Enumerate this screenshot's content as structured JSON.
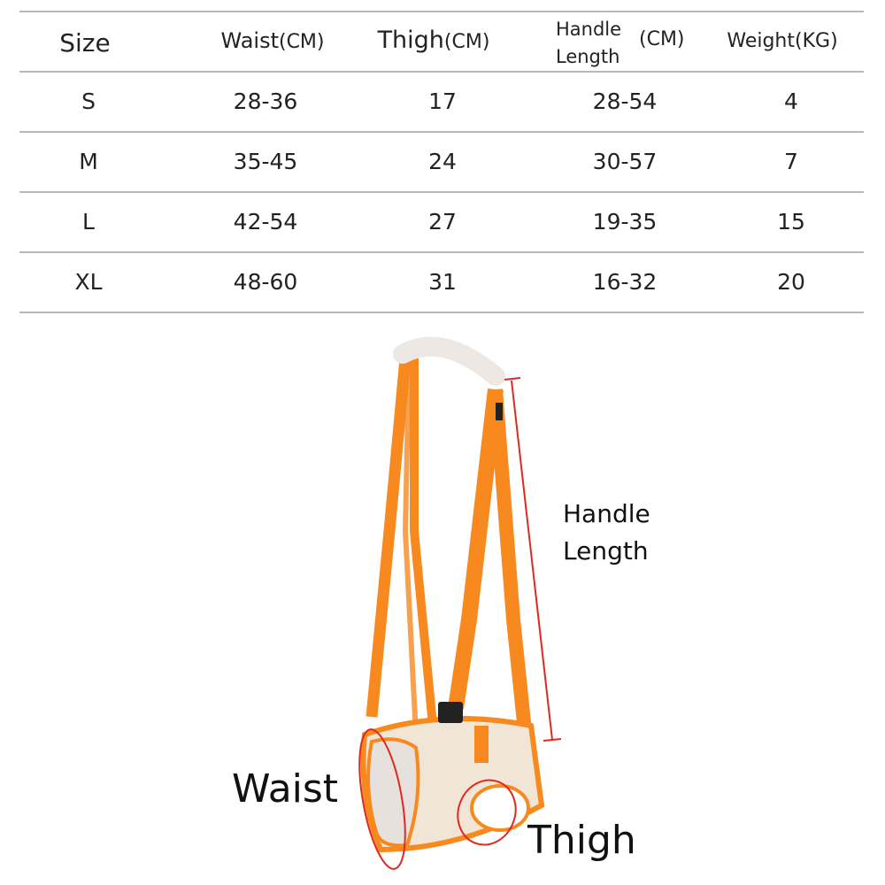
{
  "table": {
    "headers": {
      "size": "Size",
      "waist": "Waist",
      "waist_unit": "(CM)",
      "thigh": "Thigh",
      "thigh_unit": "(CM)",
      "handle_line1": "Handle",
      "handle_line2": "Length",
      "handle_unit": "(CM)",
      "weight": "Weight",
      "weight_unit": "(KG)"
    },
    "rows": [
      {
        "size": "S",
        "waist": "28-36",
        "thigh": "17",
        "handle": "28-54",
        "weight": "4"
      },
      {
        "size": "M",
        "waist": "35-45",
        "thigh": "24",
        "handle": "30-57",
        "weight": "7"
      },
      {
        "size": "L",
        "waist": "42-54",
        "thigh": "27",
        "handle": "19-35",
        "weight": "15"
      },
      {
        "size": "XL",
        "waist": "48-60",
        "thigh": "31",
        "handle": "16-32",
        "weight": "20"
      }
    ]
  },
  "diagram": {
    "handle_label_1": "Handle",
    "handle_label_2": "Length",
    "waist_label": "Waist",
    "thigh_label": "Thigh",
    "colors": {
      "strap": "#f7891f",
      "body": "#f1e6d6",
      "marker": "#e0281e"
    }
  }
}
